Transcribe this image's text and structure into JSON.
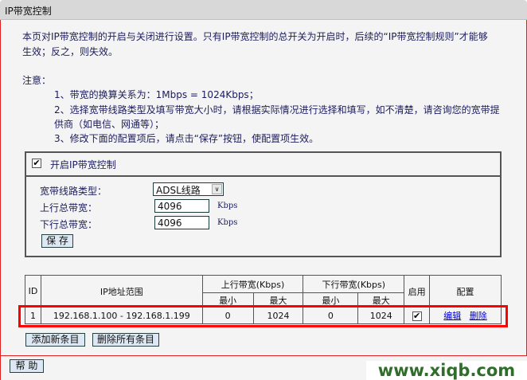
{
  "title": "IP带宽控制",
  "intro": [
    "本页对IP带宽控制的开启与关闭进行设置。只有IP带宽控制的总开关为开启时，后续的“IP带宽控制规则”才能够",
    "生效；反之，则失效。"
  ],
  "notice_label": "注意：",
  "notes": [
    "1、带宽的换算关系为：1Mbps = 1024Kbps；",
    "2、选择宽带线路类型及填写带宽大小时，请根据实际情况进行选择和填写，如不清楚，请咨询您的宽带提",
    "供商（如电信、网通等）；",
    "3、修改下面的配置项后，请点击“保存”按钮，使配置项生效。"
  ],
  "settings": {
    "enable_label": "开启IP带宽控制",
    "enable_checked": true,
    "line_type_label": "宽带线路类型：",
    "line_type_value": "ADSL线路",
    "up_label": "上行总带宽：",
    "up_value": "4096",
    "up_unit": "Kbps",
    "down_label": "下行总带宽：",
    "down_value": "4096",
    "down_unit": "Kbps",
    "save": "保 存"
  },
  "table": {
    "headers": {
      "id": "ID",
      "ip": "IP地址范围",
      "up": "上行带宽(Kbps)",
      "down": "下行带宽(Kbps)",
      "enable": "启用",
      "config": "配置",
      "min": "最小",
      "max": "最大"
    },
    "rows": [
      {
        "id": "1",
        "ip": "192.168.1.100 - 192.168.1.199",
        "up_min": "0",
        "up_max": "1024",
        "down_min": "0",
        "down_max": "1024",
        "enabled": true,
        "edit": "编辑",
        "delete": "删除"
      }
    ]
  },
  "buttons": {
    "add": "添加新条目",
    "delete_all": "删除所有条目",
    "help": "帮 助"
  },
  "watermark": "www.xiqb.com",
  "colors": {
    "highlight": "#ff0000",
    "border": "#e02020"
  }
}
